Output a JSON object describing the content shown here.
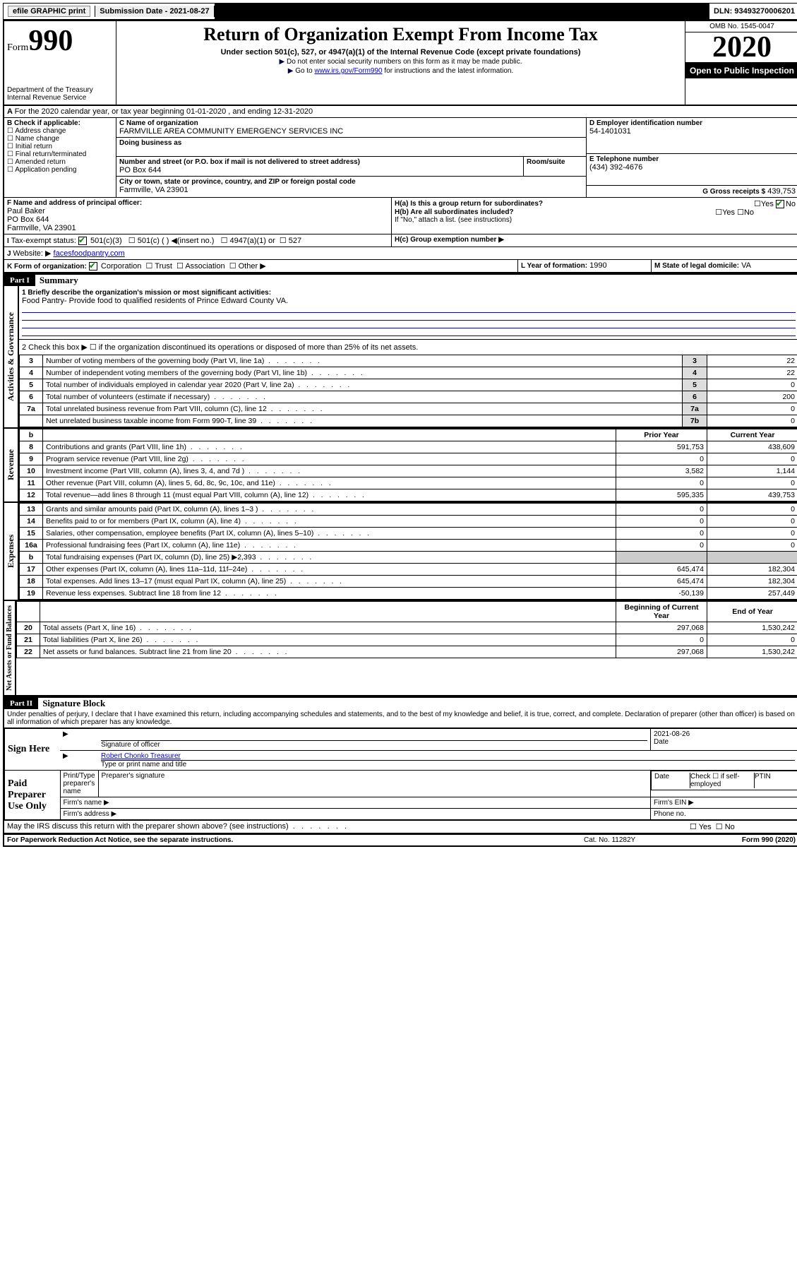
{
  "topbar": {
    "efile": "efile GRAPHIC print",
    "submission_label": "Submission Date - 2021-08-27",
    "dln": "DLN: 93493270006201"
  },
  "header": {
    "form_word": "Form",
    "form_num": "990",
    "dept": "Department of the Treasury\nInternal Revenue Service",
    "title": "Return of Organization Exempt From Income Tax",
    "sub": "Under section 501(c), 527, or 4947(a)(1) of the Internal Revenue Code (except private foundations)",
    "note1": "Do not enter social security numbers on this form as it may be made public.",
    "note2_pre": "Go to ",
    "note2_link": "www.irs.gov/Form990",
    "note2_post": " for instructions and the latest information.",
    "omb": "OMB No. 1545-0047",
    "year": "2020",
    "open": "Open to Public Inspection"
  },
  "A": {
    "text": "For the 2020 calendar year, or tax year beginning 01-01-2020   , and ending 12-31-2020"
  },
  "B": {
    "label": "B Check if applicable:",
    "items": [
      "Address change",
      "Name change",
      "Initial return",
      "Final return/terminated",
      "Amended return",
      "Application pending"
    ]
  },
  "C": {
    "name_lbl": "C Name of organization",
    "name": "FARMVILLE AREA COMMUNITY EMERGENCY SERVICES INC",
    "dba_lbl": "Doing business as",
    "addr_lbl": "Number and street (or P.O. box if mail is not delivered to street address)",
    "room_lbl": "Room/suite",
    "addr": "PO Box 644",
    "city_lbl": "City or town, state or province, country, and ZIP or foreign postal code",
    "city": "Farmville, VA  23901"
  },
  "D": {
    "lbl": "D Employer identification number",
    "val": "54-1401031"
  },
  "E": {
    "lbl": "E Telephone number",
    "val": "(434) 392-4676"
  },
  "G": {
    "lbl": "G Gross receipts $",
    "val": "439,753"
  },
  "F": {
    "lbl": "F  Name and address of principal officer:",
    "name": "Paul Baker",
    "addr": "PO Box 644",
    "city": "Farmville, VA  23901"
  },
  "H": {
    "a": "H(a)  Is this a group return for subordinates?",
    "b": "H(b)  Are all subordinates included?",
    "b_note": "If \"No,\" attach a list. (see instructions)",
    "c": "H(c)  Group exemption number ▶",
    "yes": "Yes",
    "no": "No"
  },
  "I": {
    "lbl": "Tax-exempt status:",
    "opts": [
      "501(c)(3)",
      "501(c) (  ) ◀(insert no.)",
      "4947(a)(1) or",
      "527"
    ]
  },
  "J": {
    "lbl": "Website: ▶",
    "val": "facesfoodpantry.com"
  },
  "K": {
    "lbl": "K Form of organization:",
    "opts": [
      "Corporation",
      "Trust",
      "Association",
      "Other ▶"
    ]
  },
  "L": {
    "lbl": "L Year of formation:",
    "val": "1990"
  },
  "M": {
    "lbl": "M State of legal domicile:",
    "val": "VA"
  },
  "part1": {
    "hdr": "Part I",
    "title": "Summary",
    "vtab_gov": "Activities & Governance",
    "vtab_rev": "Revenue",
    "vtab_exp": "Expenses",
    "vtab_net": "Net Assets or Fund Balances",
    "q1_lbl": "1  Briefly describe the organization's mission or most significant activities:",
    "q1_val": "Food Pantry- Provide food to qualified residents of Prince Edward County VA.",
    "q2": "2   Check this box ▶ ☐  if the organization discontinued its operations or disposed of more than 25% of its net assets.",
    "rows_gov": [
      {
        "n": "3",
        "d": "Number of voting members of the governing body (Part VI, line 1a)",
        "box": "3",
        "v": "22"
      },
      {
        "n": "4",
        "d": "Number of independent voting members of the governing body (Part VI, line 1b)",
        "box": "4",
        "v": "22"
      },
      {
        "n": "5",
        "d": "Total number of individuals employed in calendar year 2020 (Part V, line 2a)",
        "box": "5",
        "v": "0"
      },
      {
        "n": "6",
        "d": "Total number of volunteers (estimate if necessary)",
        "box": "6",
        "v": "200"
      },
      {
        "n": "7a",
        "d": "Total unrelated business revenue from Part VIII, column (C), line 12",
        "box": "7a",
        "v": "0"
      },
      {
        "n": "",
        "d": "Net unrelated business taxable income from Form 990-T, line 39",
        "box": "7b",
        "v": "0"
      }
    ],
    "col_prior": "Prior Year",
    "col_current": "Current Year",
    "rows_rev": [
      {
        "n": "8",
        "d": "Contributions and grants (Part VIII, line 1h)",
        "p": "591,753",
        "c": "438,609"
      },
      {
        "n": "9",
        "d": "Program service revenue (Part VIII, line 2g)",
        "p": "0",
        "c": "0"
      },
      {
        "n": "10",
        "d": "Investment income (Part VIII, column (A), lines 3, 4, and 7d )",
        "p": "3,582",
        "c": "1,144"
      },
      {
        "n": "11",
        "d": "Other revenue (Part VIII, column (A), lines 5, 6d, 8c, 9c, 10c, and 11e)",
        "p": "0",
        "c": "0"
      },
      {
        "n": "12",
        "d": "Total revenue—add lines 8 through 11 (must equal Part VIII, column (A), line 12)",
        "p": "595,335",
        "c": "439,753"
      }
    ],
    "rows_exp": [
      {
        "n": "13",
        "d": "Grants and similar amounts paid (Part IX, column (A), lines 1–3 )",
        "p": "0",
        "c": "0"
      },
      {
        "n": "14",
        "d": "Benefits paid to or for members (Part IX, column (A), line 4)",
        "p": "0",
        "c": "0"
      },
      {
        "n": "15",
        "d": "Salaries, other compensation, employee benefits (Part IX, column (A), lines 5–10)",
        "p": "0",
        "c": "0"
      },
      {
        "n": "16a",
        "d": "Professional fundraising fees (Part IX, column (A), line 11e)",
        "p": "0",
        "c": "0"
      },
      {
        "n": "b",
        "d": "Total fundraising expenses (Part IX, column (D), line 25) ▶2,393",
        "p": "",
        "c": "",
        "shade": true
      },
      {
        "n": "17",
        "d": "Other expenses (Part IX, column (A), lines 11a–11d, 11f–24e)",
        "p": "645,474",
        "c": "182,304"
      },
      {
        "n": "18",
        "d": "Total expenses. Add lines 13–17 (must equal Part IX, column (A), line 25)",
        "p": "645,474",
        "c": "182,304"
      },
      {
        "n": "19",
        "d": "Revenue less expenses. Subtract line 18 from line 12",
        "p": "-50,139",
        "c": "257,449"
      }
    ],
    "col_begin": "Beginning of Current Year",
    "col_end": "End of Year",
    "rows_net": [
      {
        "n": "20",
        "d": "Total assets (Part X, line 16)",
        "p": "297,068",
        "c": "1,530,242"
      },
      {
        "n": "21",
        "d": "Total liabilities (Part X, line 26)",
        "p": "0",
        "c": "0"
      },
      {
        "n": "22",
        "d": "Net assets or fund balances. Subtract line 21 from line 20",
        "p": "297,068",
        "c": "1,530,242"
      }
    ]
  },
  "part2": {
    "hdr": "Part II",
    "title": "Signature Block",
    "perjury": "Under penalties of perjury, I declare that I have examined this return, including accompanying schedules and statements, and to the best of my knowledge and belief, it is true, correct, and complete. Declaration of preparer (other than officer) is based on all information of which preparer has any knowledge.",
    "sign_here": "Sign Here",
    "sig_officer": "Signature of officer",
    "sig_date": "2021-08-26",
    "date_lbl": "Date",
    "officer_name": "Robert Chonko  Treasurer",
    "type_name": "Type or print name and title",
    "paid": "Paid Preparer Use Only",
    "p_name": "Print/Type preparer's name",
    "p_sig": "Preparer's signature",
    "p_date": "Date",
    "p_check": "Check ☐ if self-employed",
    "ptin": "PTIN",
    "firm_name": "Firm's name  ▶",
    "firm_ein": "Firm's EIN ▶",
    "firm_addr": "Firm's address ▶",
    "phone": "Phone no."
  },
  "footer": {
    "discuss": "May the IRS discuss this return with the preparer shown above? (see instructions)",
    "yes": "Yes",
    "no": "No",
    "paperwork": "For Paperwork Reduction Act Notice, see the separate instructions.",
    "cat": "Cat. No. 11282Y",
    "form": "Form 990 (2020)"
  }
}
